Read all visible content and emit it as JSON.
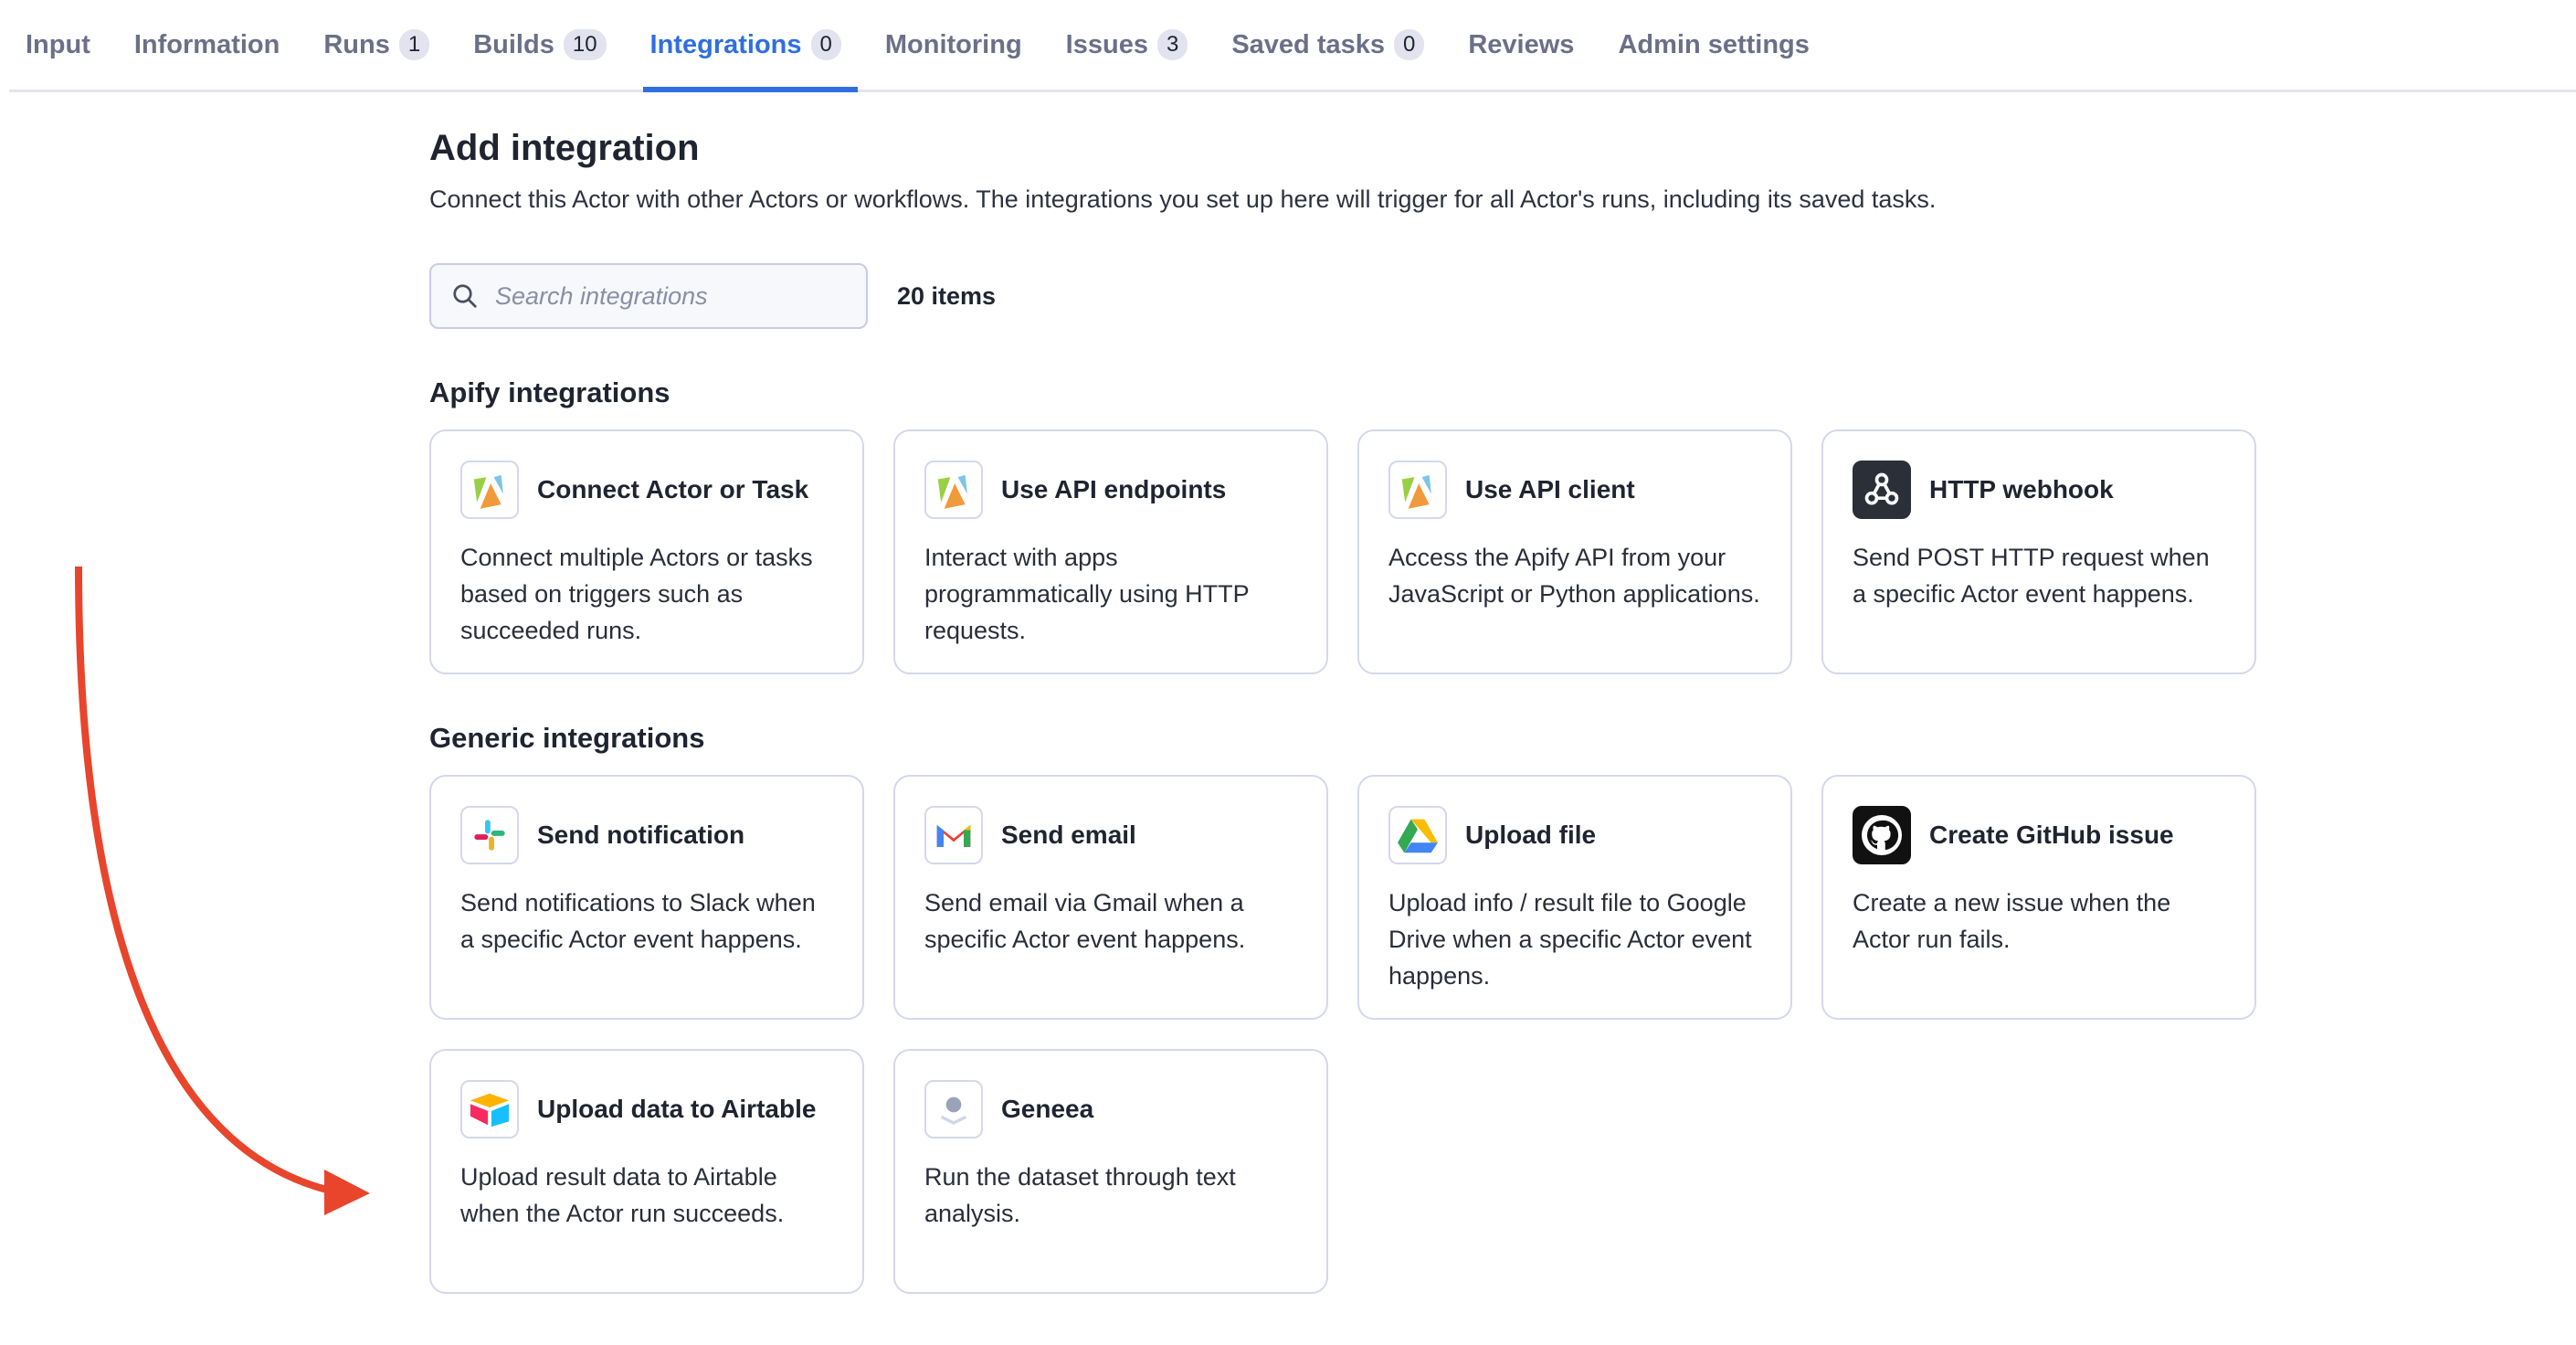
{
  "tabs": [
    {
      "label": "Input"
    },
    {
      "label": "Information"
    },
    {
      "label": "Runs",
      "badge": "1"
    },
    {
      "label": "Builds",
      "badge": "10"
    },
    {
      "label": "Integrations",
      "badge": "0",
      "active": true
    },
    {
      "label": "Monitoring"
    },
    {
      "label": "Issues",
      "badge": "3"
    },
    {
      "label": "Saved tasks",
      "badge": "0"
    },
    {
      "label": "Reviews"
    },
    {
      "label": "Admin settings"
    }
  ],
  "header": {
    "title": "Add integration",
    "subtitle": "Connect this Actor with other Actors or workflows. The integrations you set up here will trigger for all Actor's runs, including its saved tasks."
  },
  "search": {
    "placeholder": "Search integrations",
    "value": "",
    "count": "20 items"
  },
  "sections": [
    {
      "title": "Apify integrations",
      "items": [
        {
          "icon": "apify-logo-icon",
          "title": "Connect Actor or Task",
          "desc": "Connect multiple Actors or tasks based on triggers such as succeeded runs."
        },
        {
          "icon": "apify-logo-icon",
          "title": "Use API endpoints",
          "desc": "Interact with apps programmatically using HTTP requests."
        },
        {
          "icon": "apify-logo-icon",
          "title": "Use API client",
          "desc": "Access the Apify API from your JavaScript or Python applications."
        },
        {
          "icon": "webhook-icon",
          "title": "HTTP webhook",
          "desc": "Send POST HTTP request when a specific Actor event happens."
        }
      ]
    },
    {
      "title": "Generic integrations",
      "items": [
        {
          "icon": "slack-icon",
          "title": "Send notification",
          "desc": "Send notifications to Slack when a specific Actor event happens."
        },
        {
          "icon": "gmail-icon",
          "title": "Send email",
          "desc": "Send email via Gmail when a specific Actor event happens."
        },
        {
          "icon": "google-drive-icon",
          "title": "Upload file",
          "desc": "Upload info / result file to Google Drive when a specific Actor event happens."
        },
        {
          "icon": "github-icon",
          "title": "Create GitHub issue",
          "desc": "Create a new issue when the Actor run fails."
        },
        {
          "icon": "airtable-icon",
          "title": "Upload data to Airtable",
          "desc": "Upload result data to Airtable when the Actor run succeeds."
        },
        {
          "icon": "geneea-icon",
          "title": "Geneea",
          "desc": "Run the dataset through text analysis."
        }
      ]
    }
  ],
  "colors": {
    "accent": "#2f6fde",
    "annotation_arrow": "#e8452c"
  }
}
